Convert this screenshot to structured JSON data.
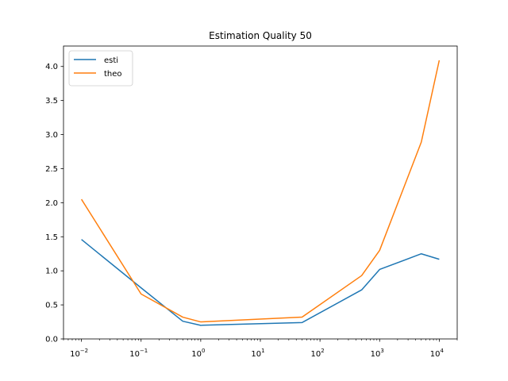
{
  "chart_data": {
    "type": "line",
    "title": "Estimation Quality 50",
    "xlabel": "",
    "ylabel": "",
    "xscale": "log",
    "xlim": [
      0.005,
      20000
    ],
    "ylim": [
      0.0,
      4.3
    ],
    "grid": false,
    "legend_position": "top-left",
    "x": [
      0.01,
      0.1,
      0.5,
      1,
      50,
      500,
      1000,
      5000,
      10000
    ],
    "series": [
      {
        "name": "esti",
        "color": "#1f77b4",
        "values": [
          1.46,
          0.75,
          0.26,
          0.2,
          0.24,
          0.72,
          1.02,
          1.25,
          1.17
        ]
      },
      {
        "name": "theo",
        "color": "#ff7f0e",
        "values": [
          2.05,
          0.66,
          0.32,
          0.25,
          0.32,
          0.93,
          1.3,
          2.89,
          4.09
        ]
      }
    ],
    "x_ticks": [
      {
        "value": 0.01,
        "base": "10",
        "exp": "−2"
      },
      {
        "value": 0.1,
        "base": "10",
        "exp": "−1"
      },
      {
        "value": 1,
        "base": "10",
        "exp": "0"
      },
      {
        "value": 10,
        "base": "10",
        "exp": "1"
      },
      {
        "value": 100,
        "base": "10",
        "exp": "2"
      },
      {
        "value": 1000,
        "base": "10",
        "exp": "3"
      },
      {
        "value": 10000,
        "base": "10",
        "exp": "4"
      }
    ],
    "y_ticks": [
      {
        "value": 0.0,
        "label": "0.0"
      },
      {
        "value": 0.5,
        "label": "0.5"
      },
      {
        "value": 1.0,
        "label": "1.0"
      },
      {
        "value": 1.5,
        "label": "1.5"
      },
      {
        "value": 2.0,
        "label": "2.0"
      },
      {
        "value": 2.5,
        "label": "2.5"
      },
      {
        "value": 3.0,
        "label": "3.0"
      },
      {
        "value": 3.5,
        "label": "3.5"
      },
      {
        "value": 4.0,
        "label": "4.0"
      }
    ]
  }
}
